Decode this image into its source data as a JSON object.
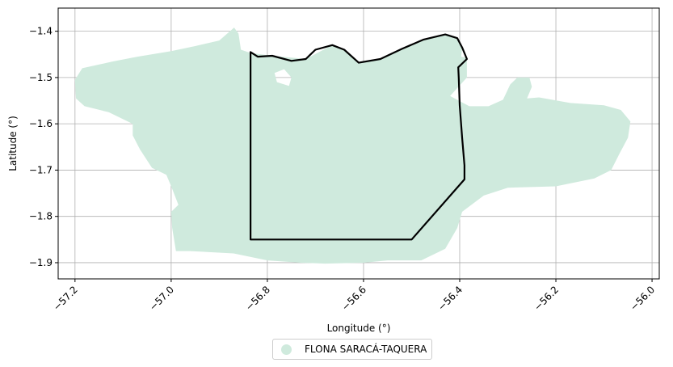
{
  "chart_data": {
    "type": "map",
    "title": "",
    "xlabel": "Longitude (°)",
    "ylabel": "Latitude (°)",
    "xlim": [
      -57.235,
      -55.985
    ],
    "ylim": [
      -1.935,
      -1.35
    ],
    "xticks": [
      -57.2,
      -57.0,
      -56.8,
      -56.6,
      -56.4,
      -56.2,
      -56.0
    ],
    "yticks": [
      -1.4,
      -1.5,
      -1.6,
      -1.7,
      -1.8,
      -1.9
    ],
    "grid": true,
    "legend": {
      "placement": "bottom-center"
    },
    "series": [
      {
        "name": "FLONA SARACÁ-TAQUERA",
        "kind": "filled-region",
        "color": "#cfeadd",
        "polygon": [
          [
            -56.869,
            -1.392
          ],
          [
            -56.86,
            -1.405
          ],
          [
            -56.855,
            -1.44
          ],
          [
            -56.835,
            -1.447
          ],
          [
            -56.79,
            -1.453
          ],
          [
            -56.72,
            -1.46
          ],
          [
            -56.665,
            -1.43
          ],
          [
            -56.64,
            -1.44
          ],
          [
            -56.61,
            -1.468
          ],
          [
            -56.565,
            -1.46
          ],
          [
            -56.52,
            -1.438
          ],
          [
            -56.475,
            -1.418
          ],
          [
            -56.43,
            -1.407
          ],
          [
            -56.405,
            -1.415
          ],
          [
            -56.395,
            -1.435
          ],
          [
            -56.397,
            -1.455
          ],
          [
            -56.385,
            -1.457
          ],
          [
            -56.385,
            -1.5
          ],
          [
            -56.42,
            -1.54
          ],
          [
            -56.38,
            -1.562
          ],
          [
            -56.34,
            -1.562
          ],
          [
            -56.31,
            -1.548
          ],
          [
            -56.295,
            -1.515
          ],
          [
            -56.28,
            -1.5
          ],
          [
            -56.255,
            -1.5
          ],
          [
            -56.25,
            -1.52
          ],
          [
            -56.26,
            -1.545
          ],
          [
            -56.235,
            -1.543
          ],
          [
            -56.17,
            -1.555
          ],
          [
            -56.1,
            -1.56
          ],
          [
            -56.065,
            -1.57
          ],
          [
            -56.045,
            -1.595
          ],
          [
            -56.05,
            -1.63
          ],
          [
            -56.068,
            -1.665
          ],
          [
            -56.085,
            -1.7
          ],
          [
            -56.12,
            -1.718
          ],
          [
            -56.2,
            -1.735
          ],
          [
            -56.3,
            -1.738
          ],
          [
            -56.35,
            -1.755
          ],
          [
            -56.395,
            -1.79
          ],
          [
            -56.405,
            -1.825
          ],
          [
            -56.43,
            -1.87
          ],
          [
            -56.48,
            -1.895
          ],
          [
            -56.55,
            -1.895
          ],
          [
            -56.6,
            -1.9
          ],
          [
            -56.68,
            -1.902
          ],
          [
            -56.73,
            -1.9
          ],
          [
            -56.8,
            -1.895
          ],
          [
            -56.87,
            -1.88
          ],
          [
            -56.96,
            -1.875
          ],
          [
            -56.99,
            -1.875
          ],
          [
            -56.998,
            -1.825
          ],
          [
            -57.0,
            -1.79
          ],
          [
            -56.985,
            -1.775
          ],
          [
            -57.0,
            -1.735
          ],
          [
            -57.01,
            -1.71
          ],
          [
            -57.04,
            -1.695
          ],
          [
            -57.065,
            -1.655
          ],
          [
            -57.08,
            -1.625
          ],
          [
            -57.08,
            -1.6
          ],
          [
            -57.13,
            -1.575
          ],
          [
            -57.18,
            -1.562
          ],
          [
            -57.198,
            -1.545
          ],
          [
            -57.2,
            -1.505
          ],
          [
            -57.185,
            -1.48
          ],
          [
            -57.12,
            -1.465
          ],
          [
            -57.07,
            -1.455
          ],
          [
            -57.0,
            -1.443
          ],
          [
            -56.95,
            -1.432
          ],
          [
            -56.9,
            -1.42
          ]
        ],
        "holes": [
          [
            [
              -56.78,
              -1.51
            ],
            [
              -56.755,
              -1.518
            ],
            [
              -56.75,
              -1.5
            ],
            [
              -56.765,
              -1.482
            ],
            [
              -56.785,
              -1.49
            ]
          ]
        ]
      },
      {
        "name": "",
        "kind": "outline",
        "color": "#000000",
        "polygon": [
          [
            -56.835,
            -1.445
          ],
          [
            -56.835,
            -1.85
          ],
          [
            -56.5,
            -1.85
          ],
          [
            -56.39,
            -1.72
          ],
          [
            -56.39,
            -1.69
          ],
          [
            -56.395,
            -1.63
          ],
          [
            -56.4,
            -1.56
          ],
          [
            -56.402,
            -1.5
          ],
          [
            -56.403,
            -1.478
          ],
          [
            -56.385,
            -1.46
          ],
          [
            -56.395,
            -1.435
          ],
          [
            -56.405,
            -1.415
          ],
          [
            -56.43,
            -1.407
          ],
          [
            -56.475,
            -1.418
          ],
          [
            -56.52,
            -1.438
          ],
          [
            -56.565,
            -1.46
          ],
          [
            -56.61,
            -1.468
          ],
          [
            -56.64,
            -1.44
          ],
          [
            -56.665,
            -1.43
          ],
          [
            -56.7,
            -1.44
          ],
          [
            -56.72,
            -1.46
          ],
          [
            -56.75,
            -1.464
          ],
          [
            -56.79,
            -1.453
          ],
          [
            -56.82,
            -1.455
          ],
          [
            -56.835,
            -1.445
          ]
        ]
      }
    ]
  }
}
